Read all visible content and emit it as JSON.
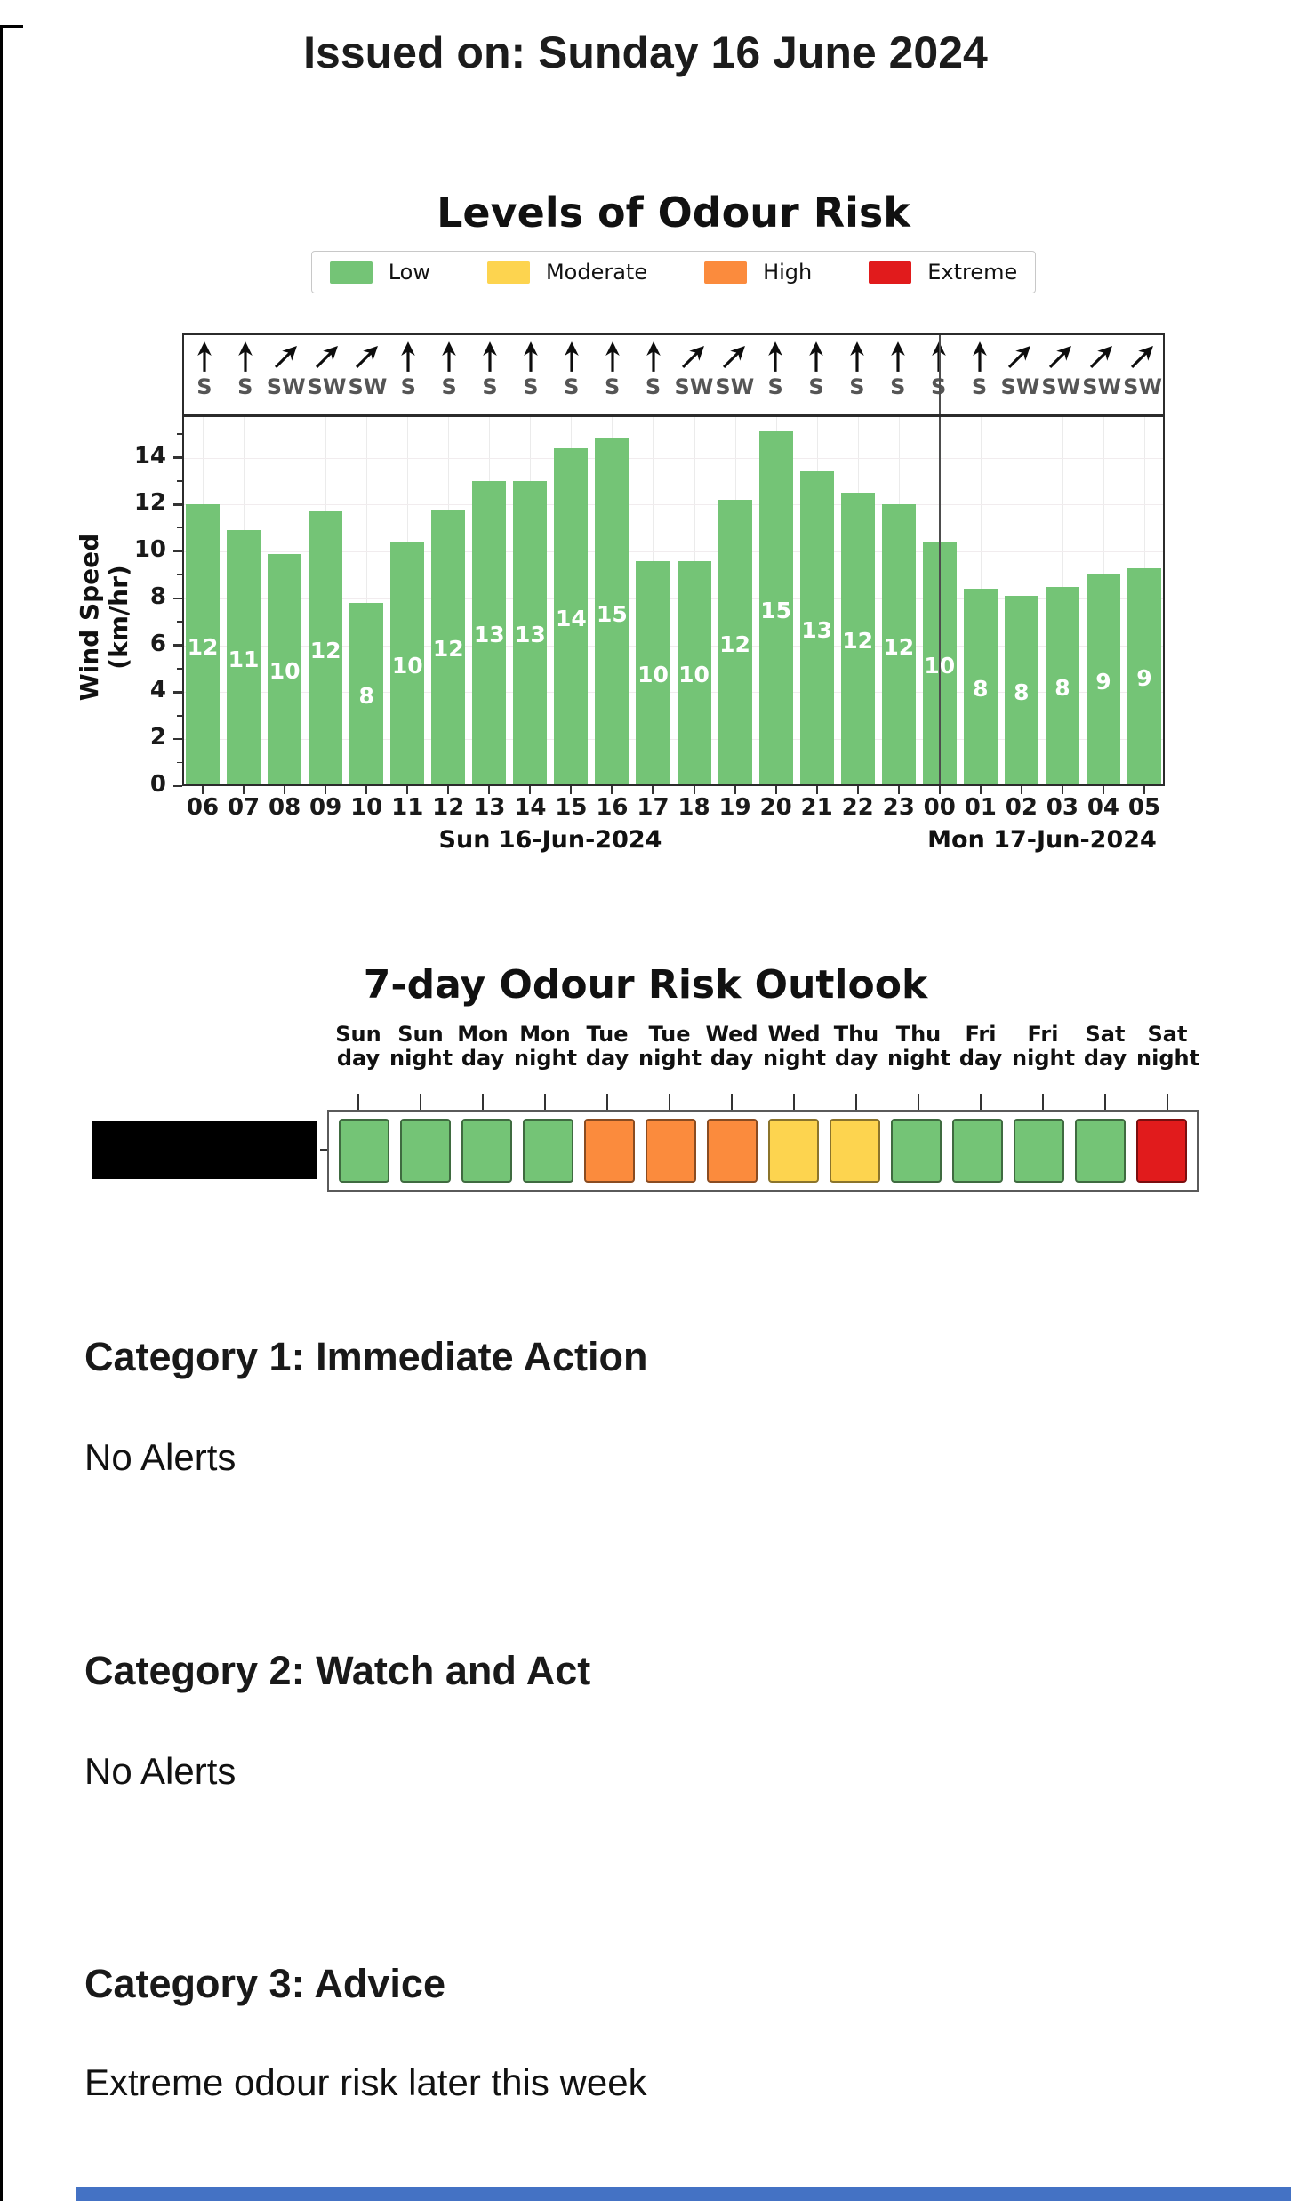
{
  "page": {
    "issued_title": "Issued on: Sunday 16 June 2024",
    "footer_color": "#4472c4"
  },
  "risk_levels": {
    "Low": "#74c476",
    "Moderate": "#fdd44f",
    "High": "#fb8b3d",
    "Extreme": "#e11b1c"
  },
  "chart_data": [
    {
      "type": "bar",
      "title": "Levels of Odour Risk",
      "legend": [
        "Low",
        "Moderate",
        "High",
        "Extreme"
      ],
      "legend_position": "top",
      "grid": true,
      "ylabel": "Wind Speed (km/hr)",
      "xlabel": "",
      "ylim": [
        0,
        15.8
      ],
      "yticks": [
        0,
        2,
        4,
        6,
        8,
        10,
        12,
        14
      ],
      "categories": [
        "06",
        "07",
        "08",
        "09",
        "10",
        "11",
        "12",
        "13",
        "14",
        "15",
        "16",
        "17",
        "18",
        "19",
        "20",
        "21",
        "22",
        "23",
        "00",
        "01",
        "02",
        "03",
        "04",
        "05"
      ],
      "values": [
        12.0,
        10.9,
        9.9,
        11.7,
        7.8,
        10.4,
        11.8,
        13.0,
        13.0,
        14.4,
        14.8,
        9.6,
        9.6,
        12.2,
        15.1,
        13.4,
        12.5,
        12.0,
        10.4,
        8.4,
        8.1,
        8.5,
        9.0,
        9.3
      ],
      "bar_labels": [
        "12",
        "11",
        "10",
        "12",
        "8",
        "10",
        "12",
        "13",
        "13",
        "14",
        "15",
        "10",
        "10",
        "12",
        "15",
        "13",
        "12",
        "12",
        "10",
        "8",
        "8",
        "8",
        "9",
        "9"
      ],
      "bar_color_key": "Low",
      "wind_directions": [
        "S",
        "S",
        "SW",
        "SW",
        "SW",
        "S",
        "S",
        "S",
        "S",
        "S",
        "S",
        "S",
        "SW",
        "SW",
        "S",
        "S",
        "S",
        "S",
        "S",
        "S",
        "SW",
        "SW",
        "SW",
        "SW"
      ],
      "day_labels": [
        "Sun 16-Jun-2024",
        "Mon 17-Jun-2024"
      ],
      "day_divider_category": "00"
    },
    {
      "type": "heatmap",
      "title": "7-day Odour Risk Outlook",
      "categories": [
        "Sun day",
        "Sun night",
        "Mon day",
        "Mon night",
        "Tue day",
        "Tue night",
        "Wed day",
        "Wed night",
        "Thu day",
        "Thu night",
        "Fri day",
        "Fri night",
        "Sat day",
        "Sat night"
      ],
      "values": [
        "Low",
        "Low",
        "Low",
        "Low",
        "High",
        "High",
        "High",
        "Moderate",
        "Moderate",
        "Low",
        "Low",
        "Low",
        "Low",
        "Extreme"
      ],
      "row_label_redacted": true,
      "legend_position": "none"
    }
  ],
  "sections": [
    {
      "heading": "Category 1: Immediate Action",
      "body": "No Alerts"
    },
    {
      "heading": "Category 2: Watch and Act",
      "body": "No Alerts"
    },
    {
      "heading": "Category 3: Advice",
      "body": "Extreme odour risk later this week"
    }
  ]
}
